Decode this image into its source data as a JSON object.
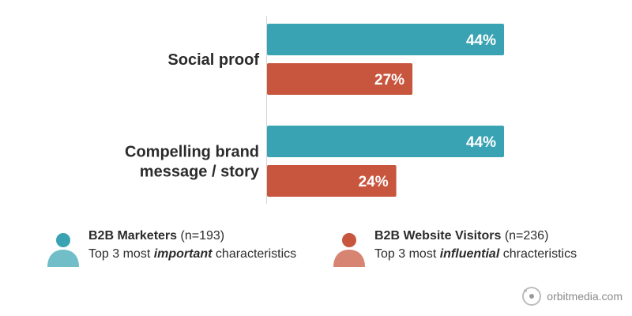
{
  "chart_data": {
    "type": "bar",
    "orientation": "horizontal",
    "categories": [
      "Social proof",
      "Compelling brand message / story"
    ],
    "category_lines": [
      [
        "Social proof"
      ],
      [
        "Compelling brand",
        "message / story"
      ]
    ],
    "series": [
      {
        "name": "B2B Marketers",
        "values": [
          44,
          44
        ],
        "color": "#3aa3b3"
      },
      {
        "name": "B2B Website Visitors",
        "values": [
          27,
          24
        ],
        "color": "#c8553d"
      }
    ],
    "value_suffix": "%",
    "xlim": [
      0,
      100
    ],
    "grid": false,
    "legend": "bottom"
  },
  "legend": [
    {
      "name": "B2B Marketers",
      "count": "(n=193)",
      "desc_before": "Top 3 most ",
      "desc_emph": "important",
      "desc_after": " characteristics",
      "color": "#3aa3b3",
      "icon": "person-icon"
    },
    {
      "name": "B2B Website Visitors",
      "count": "(n=236)",
      "desc_before": "Top 3 most ",
      "desc_emph": "influential",
      "desc_after": " chracteristics",
      "color": "#c8553d",
      "icon": "person-icon"
    }
  ],
  "brand": {
    "text": "orbitmedia.com",
    "icon": "orbit-logo-icon"
  }
}
